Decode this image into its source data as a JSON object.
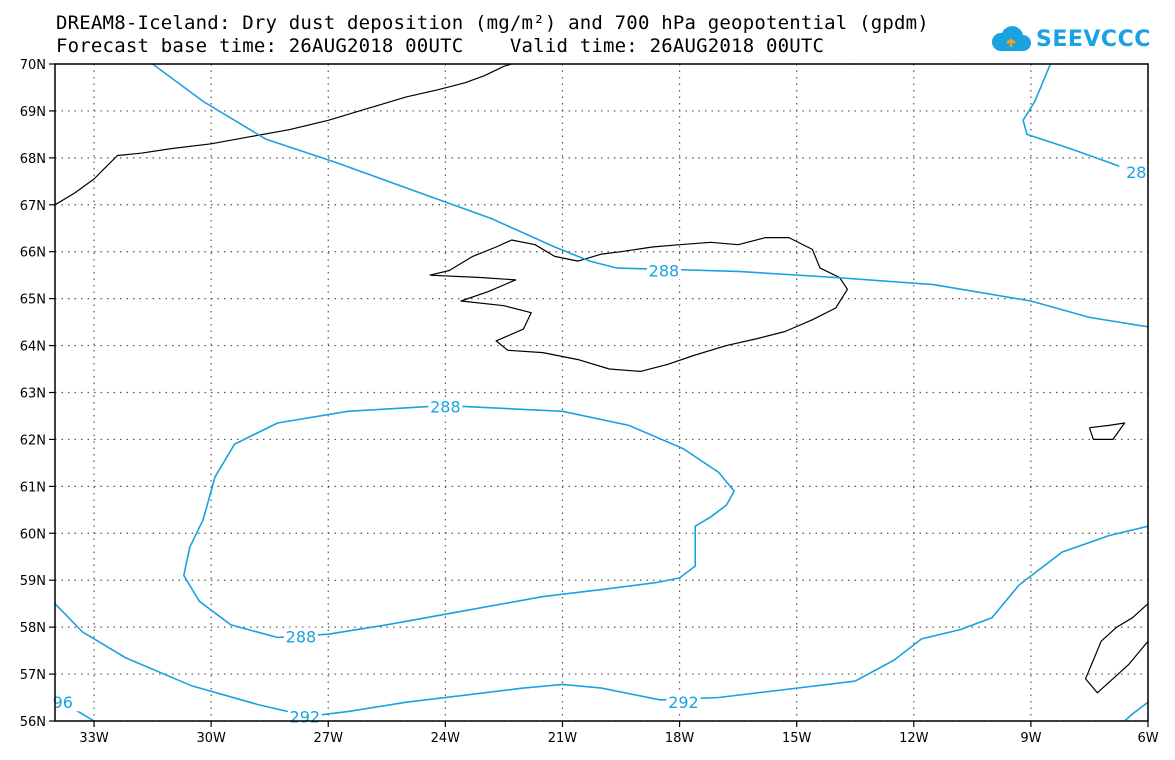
{
  "title": {
    "line1": "DREAM8-Iceland: Dry dust deposition (mg/m²) and 700 hPa geopotential (gpdm)",
    "line2": "Forecast base time: 26AUG2018 00UTC    Valid time: 26AUG2018 00UTC"
  },
  "logo": {
    "text": "SEEVCCC",
    "icon": "cloud-icon",
    "color": "#1aa2e0"
  },
  "map": {
    "lon_range": [
      -34.0,
      -6.0
    ],
    "lat_range": [
      56.0,
      70.0
    ],
    "grid": "dotted",
    "lat_ticks": [
      {
        "value": 70,
        "label": "70N"
      },
      {
        "value": 69,
        "label": "69N"
      },
      {
        "value": 68,
        "label": "68N"
      },
      {
        "value": 67,
        "label": "67N"
      },
      {
        "value": 66,
        "label": "66N"
      },
      {
        "value": 65,
        "label": "65N"
      },
      {
        "value": 64,
        "label": "64N"
      },
      {
        "value": 63,
        "label": "63N"
      },
      {
        "value": 62,
        "label": "62N"
      },
      {
        "value": 61,
        "label": "61N"
      },
      {
        "value": 60,
        "label": "60N"
      },
      {
        "value": 59,
        "label": "59N"
      },
      {
        "value": 58,
        "label": "58N"
      },
      {
        "value": 57,
        "label": "57N"
      },
      {
        "value": 56,
        "label": "56N"
      }
    ],
    "lon_ticks": [
      {
        "value": -33,
        "label": "33W"
      },
      {
        "value": -30,
        "label": "30W"
      },
      {
        "value": -27,
        "label": "27W"
      },
      {
        "value": -24,
        "label": "24W"
      },
      {
        "value": -21,
        "label": "21W"
      },
      {
        "value": -18,
        "label": "18W"
      },
      {
        "value": -15,
        "label": "15W"
      },
      {
        "value": -12,
        "label": "12W"
      },
      {
        "value": -9,
        "label": "9W"
      },
      {
        "value": -6,
        "label": "6W"
      }
    ],
    "contour_color": "#1aa2e0",
    "contour_labels": [
      {
        "text": "288",
        "lon": -18.4,
        "lat": 65.6
      },
      {
        "text": "288",
        "lon": -24.0,
        "lat": 62.7
      },
      {
        "text": "288",
        "lon": -27.7,
        "lat": 57.8
      },
      {
        "text": "292",
        "lon": -17.9,
        "lat": 56.4
      },
      {
        "text": "292",
        "lon": -27.6,
        "lat": 56.1
      },
      {
        "text": "28",
        "lon": -6.3,
        "lat": 67.7
      },
      {
        "text": "96",
        "lon": -33.8,
        "lat": 56.4
      }
    ],
    "contours": [
      {
        "name": "contour-288-north",
        "value": 288,
        "points": [
          [
            -31.5,
            70
          ],
          [
            -30.2,
            69.2
          ],
          [
            -28.6,
            68.4
          ],
          [
            -26.8,
            67.9
          ],
          [
            -24.8,
            67.3
          ],
          [
            -22.8,
            66.7
          ],
          [
            -21.2,
            66.1
          ],
          [
            -20.3,
            65.8
          ],
          [
            -19.6,
            65.65
          ],
          [
            -18.2,
            65.62
          ],
          [
            -16.5,
            65.58
          ],
          [
            -14.0,
            65.45
          ],
          [
            -11.5,
            65.3
          ],
          [
            -9.0,
            64.95
          ],
          [
            -7.5,
            64.6
          ],
          [
            -6.0,
            64.4
          ]
        ]
      },
      {
        "name": "contour-288-closed",
        "value": 288,
        "points": [
          [
            -24.0,
            62.72
          ],
          [
            -21.0,
            62.6
          ],
          [
            -19.3,
            62.3
          ],
          [
            -17.9,
            61.8
          ],
          [
            -17.0,
            61.3
          ],
          [
            -16.6,
            60.9
          ],
          [
            -16.8,
            60.6
          ],
          [
            -17.2,
            60.35
          ],
          [
            -17.6,
            60.15
          ],
          [
            -17.6,
            59.8
          ],
          [
            -17.6,
            59.3
          ],
          [
            -18.0,
            59.05
          ],
          [
            -18.6,
            58.95
          ],
          [
            -20.0,
            58.8
          ],
          [
            -21.5,
            58.65
          ],
          [
            -23.5,
            58.35
          ],
          [
            -25.5,
            58.05
          ],
          [
            -27.0,
            57.85
          ],
          [
            -28.3,
            57.78
          ],
          [
            -29.5,
            58.05
          ],
          [
            -30.3,
            58.55
          ],
          [
            -30.7,
            59.1
          ],
          [
            -30.55,
            59.7
          ],
          [
            -30.2,
            60.3
          ],
          [
            -29.9,
            61.2
          ],
          [
            -29.4,
            61.9
          ],
          [
            -28.3,
            62.35
          ],
          [
            -26.5,
            62.6
          ],
          [
            -24.0,
            62.72
          ]
        ]
      },
      {
        "name": "contour-292",
        "value": 292,
        "points": [
          [
            -34.0,
            58.5
          ],
          [
            -33.3,
            57.9
          ],
          [
            -32.2,
            57.35
          ],
          [
            -30.5,
            56.75
          ],
          [
            -28.8,
            56.35
          ],
          [
            -27.5,
            56.1
          ],
          [
            -26.5,
            56.2
          ],
          [
            -25.0,
            56.4
          ],
          [
            -23.5,
            56.55
          ],
          [
            -22.0,
            56.7
          ],
          [
            -21.0,
            56.78
          ],
          [
            -20.0,
            56.7
          ],
          [
            -18.5,
            56.45
          ],
          [
            -17.0,
            56.5
          ],
          [
            -15.5,
            56.65
          ],
          [
            -13.5,
            56.85
          ],
          [
            -12.5,
            57.3
          ],
          [
            -11.8,
            57.75
          ],
          [
            -10.8,
            57.95
          ],
          [
            -10.0,
            58.2
          ],
          [
            -9.3,
            58.9
          ],
          [
            -8.2,
            59.6
          ],
          [
            -7.0,
            59.95
          ],
          [
            -6.0,
            60.15
          ]
        ]
      },
      {
        "name": "contour-28x-east",
        "value": 288,
        "points": [
          [
            -8.5,
            70
          ],
          [
            -8.9,
            69.2
          ],
          [
            -9.2,
            68.8
          ],
          [
            -9.1,
            68.5
          ],
          [
            -8.0,
            68.2
          ],
          [
            -7.0,
            67.9
          ],
          [
            -6.0,
            67.6
          ]
        ]
      },
      {
        "name": "contour-296-corner",
        "value": 296,
        "points": [
          [
            -34.0,
            56.45
          ],
          [
            -33.6,
            56.3
          ],
          [
            -33.1,
            56.05
          ],
          [
            -33.0,
            56.0
          ]
        ]
      },
      {
        "name": "contour-sw-corner",
        "value": 296,
        "points": [
          [
            -6.0,
            56.4
          ],
          [
            -6.4,
            56.15
          ],
          [
            -6.6,
            56.0
          ]
        ]
      }
    ],
    "coastlines": [
      {
        "name": "coastline-iceland",
        "points": [
          [
            -24.4,
            65.5
          ],
          [
            -23.9,
            65.6
          ],
          [
            -23.3,
            65.9
          ],
          [
            -22.7,
            66.1
          ],
          [
            -22.3,
            66.25
          ],
          [
            -21.7,
            66.15
          ],
          [
            -21.2,
            65.9
          ],
          [
            -20.6,
            65.8
          ],
          [
            -20.0,
            65.95
          ],
          [
            -19.5,
            66.0
          ],
          [
            -18.7,
            66.1
          ],
          [
            -18.0,
            66.15
          ],
          [
            -17.2,
            66.2
          ],
          [
            -16.5,
            66.15
          ],
          [
            -15.8,
            66.3
          ],
          [
            -15.2,
            66.3
          ],
          [
            -14.6,
            66.05
          ],
          [
            -14.4,
            65.65
          ],
          [
            -13.9,
            65.45
          ],
          [
            -13.7,
            65.2
          ],
          [
            -14.0,
            64.8
          ],
          [
            -14.6,
            64.55
          ],
          [
            -15.3,
            64.3
          ],
          [
            -16.0,
            64.15
          ],
          [
            -16.8,
            64.0
          ],
          [
            -17.6,
            63.8
          ],
          [
            -18.3,
            63.6
          ],
          [
            -19.0,
            63.45
          ],
          [
            -19.8,
            63.5
          ],
          [
            -20.6,
            63.7
          ],
          [
            -21.5,
            63.85
          ],
          [
            -22.4,
            63.9
          ],
          [
            -22.7,
            64.1
          ],
          [
            -22.0,
            64.35
          ],
          [
            -21.8,
            64.7
          ],
          [
            -22.5,
            64.85
          ],
          [
            -23.6,
            64.95
          ],
          [
            -22.9,
            65.15
          ],
          [
            -22.2,
            65.4
          ],
          [
            -23.1,
            65.45
          ],
          [
            -24.4,
            65.5
          ]
        ]
      },
      {
        "name": "coastline-greenland",
        "points": [
          [
            -34.0,
            67.0
          ],
          [
            -33.5,
            67.25
          ],
          [
            -33.0,
            67.55
          ],
          [
            -32.7,
            67.8
          ],
          [
            -32.4,
            68.05
          ],
          [
            -31.8,
            68.1
          ],
          [
            -31.0,
            68.2
          ],
          [
            -30.0,
            68.3
          ],
          [
            -29.0,
            68.45
          ],
          [
            -28.0,
            68.6
          ],
          [
            -27.0,
            68.8
          ],
          [
            -26.0,
            69.05
          ],
          [
            -25.0,
            69.3
          ],
          [
            -24.2,
            69.45
          ],
          [
            -23.5,
            69.6
          ],
          [
            -23.0,
            69.75
          ],
          [
            -22.5,
            69.95
          ],
          [
            -22.3,
            70.0
          ]
        ]
      },
      {
        "name": "coastline-faroe",
        "points": [
          [
            -7.5,
            62.25
          ],
          [
            -7.0,
            62.3
          ],
          [
            -6.6,
            62.35
          ],
          [
            -6.9,
            62.0
          ],
          [
            -7.4,
            62.0
          ],
          [
            -7.5,
            62.25
          ]
        ]
      },
      {
        "name": "coastline-scotland",
        "points": [
          [
            -6.0,
            58.5
          ],
          [
            -6.4,
            58.2
          ],
          [
            -6.8,
            58.0
          ],
          [
            -7.2,
            57.7
          ],
          [
            -7.4,
            57.3
          ],
          [
            -7.6,
            56.9
          ],
          [
            -7.3,
            56.6
          ],
          [
            -6.9,
            56.9
          ],
          [
            -6.5,
            57.2
          ],
          [
            -6.2,
            57.5
          ],
          [
            -6.0,
            57.7
          ]
        ]
      }
    ]
  }
}
